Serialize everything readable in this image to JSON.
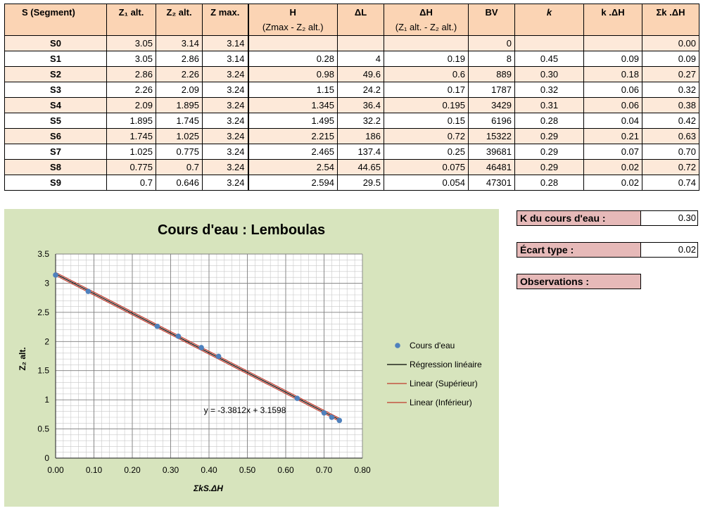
{
  "table": {
    "headers": [
      {
        "line1": "S (Segment)",
        "line2": ""
      },
      {
        "line1": "Z₁ alt.",
        "line2": ""
      },
      {
        "line1": "Z₂ alt.",
        "line2": ""
      },
      {
        "line1": "Z max.",
        "line2": ""
      },
      {
        "line1": "H",
        "line2": "(Zmax - Z₂ alt.)"
      },
      {
        "line1": "ΔL",
        "line2": ""
      },
      {
        "line1": "ΔH",
        "line2": "(Z₁ alt. - Z₂ alt.)"
      },
      {
        "line1": "BV",
        "line2": ""
      },
      {
        "line1": "k",
        "line2": ""
      },
      {
        "line1": "k .ΔH",
        "line2": ""
      },
      {
        "line1": "Σk .ΔH",
        "line2": ""
      }
    ],
    "rows": [
      [
        "S0",
        "3.05",
        "3.14",
        "3.14",
        "",
        "",
        "",
        "0",
        "",
        "",
        "0.00"
      ],
      [
        "S1",
        "3.05",
        "2.86",
        "3.14",
        "0.28",
        "4",
        "0.19",
        "8",
        "0.45",
        "0.09",
        "0.09"
      ],
      [
        "S2",
        "2.86",
        "2.26",
        "3.24",
        "0.98",
        "49.6",
        "0.6",
        "889",
        "0.30",
        "0.18",
        "0.27"
      ],
      [
        "S3",
        "2.26",
        "2.09",
        "3.24",
        "1.15",
        "24.2",
        "0.17",
        "1787",
        "0.32",
        "0.06",
        "0.32"
      ],
      [
        "S4",
        "2.09",
        "1.895",
        "3.24",
        "1.345",
        "36.4",
        "0.195",
        "3429",
        "0.31",
        "0.06",
        "0.38"
      ],
      [
        "S5",
        "1.895",
        "1.745",
        "3.24",
        "1.495",
        "32.2",
        "0.15",
        "6196",
        "0.28",
        "0.04",
        "0.42"
      ],
      [
        "S6",
        "1.745",
        "1.025",
        "3.24",
        "2.215",
        "186",
        "0.72",
        "15322",
        "0.29",
        "0.21",
        "0.63"
      ],
      [
        "S7",
        "1.025",
        "0.775",
        "3.24",
        "2.465",
        "137.4",
        "0.25",
        "39681",
        "0.29",
        "0.07",
        "0.70"
      ],
      [
        "S8",
        "0.775",
        "0.7",
        "3.24",
        "2.54",
        "44.65",
        "0.075",
        "46481",
        "0.29",
        "0.02",
        "0.72"
      ],
      [
        "S9",
        "0.7",
        "0.646",
        "3.24",
        "2.594",
        "29.5",
        "0.054",
        "47301",
        "0.28",
        "0.02",
        "0.74"
      ]
    ]
  },
  "info": {
    "k_label": "K du cours d'eau :",
    "k_value": "0.30",
    "std_label": "Écart type :",
    "std_value": "0.02",
    "obs_label": "Observations :"
  },
  "chart_data": {
    "type": "scatter",
    "title": "Cours d'eau : Lemboulas",
    "xlabel": "ΣkS.ΔH",
    "ylabel": "Z₂ alt.",
    "xlim": [
      0,
      0.8
    ],
    "ylim": [
      0,
      3.5
    ],
    "x_ticks": [
      "0.00",
      "0.10",
      "0.20",
      "0.30",
      "0.40",
      "0.50",
      "0.60",
      "0.70",
      "0.80"
    ],
    "y_ticks": [
      "0",
      "0.5",
      "1",
      "1.5",
      "2",
      "2.5",
      "3",
      "3.5"
    ],
    "grid": true,
    "legend_position": "right",
    "series": [
      {
        "name": "Cours d'eau",
        "kind": "points",
        "color": "#4f81bd",
        "x": [
          0.0,
          0.085,
          0.265,
          0.32,
          0.38,
          0.425,
          0.63,
          0.7,
          0.72,
          0.74
        ],
        "y": [
          3.14,
          2.86,
          2.26,
          2.09,
          1.895,
          1.745,
          1.025,
          0.775,
          0.7,
          0.646
        ]
      },
      {
        "name": "Régression linéaire",
        "kind": "line",
        "color": "#000000",
        "x": [
          0.0,
          0.74
        ],
        "y": [
          3.1598,
          0.6577
        ]
      },
      {
        "name": "Linear (Supérieur)",
        "kind": "line",
        "color": "#c0392b",
        "x": [
          0.0,
          0.74
        ],
        "y": [
          3.1848,
          0.6827
        ]
      },
      {
        "name": "Linear (Inférieur)",
        "kind": "line",
        "color": "#c0392b",
        "x": [
          0.0,
          0.74
        ],
        "y": [
          3.1348,
          0.6327
        ]
      }
    ],
    "annotation": "y = -3.3812x + 3.1598"
  }
}
